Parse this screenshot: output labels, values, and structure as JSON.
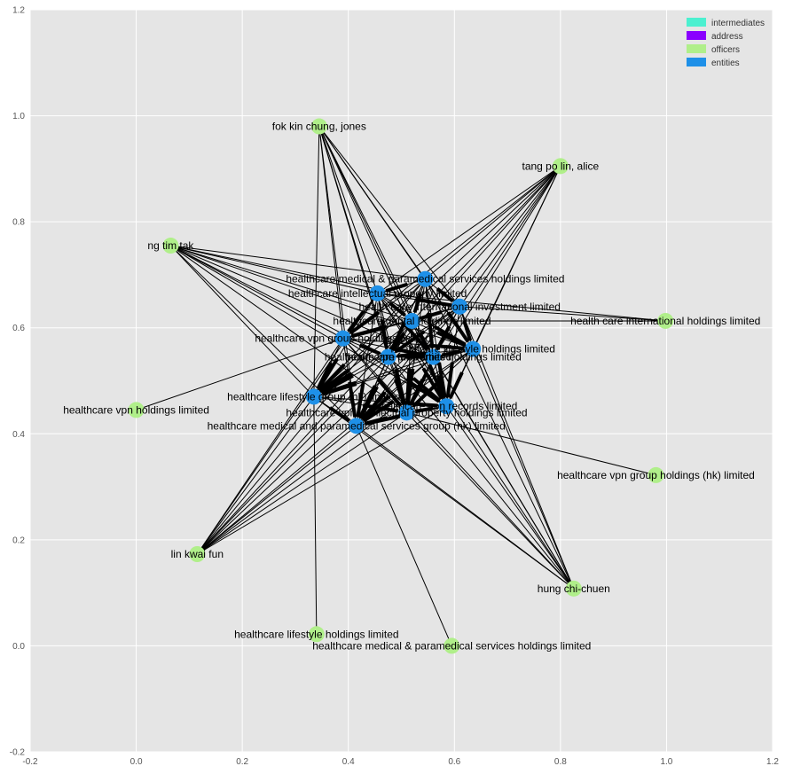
{
  "chart_data": {
    "type": "network",
    "xlim": [
      -0.2,
      1.2
    ],
    "ylim": [
      -0.2,
      1.2
    ],
    "x_ticks": [
      "-0.2",
      "0.0",
      "0.2",
      "0.4",
      "0.6",
      "0.8",
      "1.0",
      "1.2"
    ],
    "y_ticks": [
      "-0.2",
      "0.0",
      "0.2",
      "0.4",
      "0.6",
      "0.8",
      "1.0",
      "1.2"
    ],
    "grid": true,
    "legend_position": "top-right",
    "legend": [
      {
        "label": "intermediates",
        "color": "#4cf0d0"
      },
      {
        "label": "address",
        "color": "#8a00ff"
      },
      {
        "label": "officers",
        "color": "#b0ef8a"
      },
      {
        "label": "entities",
        "color": "#1e90e8"
      }
    ],
    "nodes": [
      {
        "id": "o_fok",
        "label": "fok kin chung, jones",
        "type": "officers",
        "x": 0.345,
        "y": 0.98
      },
      {
        "id": "o_tang",
        "label": "tang po lin, alice",
        "type": "officers",
        "x": 0.8,
        "y": 0.905
      },
      {
        "id": "o_ng",
        "label": "ng tim tak",
        "type": "officers",
        "x": 0.065,
        "y": 0.755
      },
      {
        "id": "o_hci",
        "label": "health care international holdings limited",
        "type": "officers",
        "x": 0.998,
        "y": 0.613
      },
      {
        "id": "o_vpnh",
        "label": "healthcare vpn holdings limited",
        "type": "officers",
        "x": 0.0,
        "y": 0.445
      },
      {
        "id": "o_vpngh",
        "label": "healthcare vpn group holdings (hk) limited",
        "type": "officers",
        "x": 0.98,
        "y": 0.322
      },
      {
        "id": "o_lin",
        "label": "lin kwai fun",
        "type": "officers",
        "x": 0.115,
        "y": 0.173
      },
      {
        "id": "o_hung",
        "label": "hung chi-chuen",
        "type": "officers",
        "x": 0.825,
        "y": 0.108
      },
      {
        "id": "o_lsh",
        "label": "healthcare lifestyle holdings limited",
        "type": "officers",
        "x": 0.34,
        "y": 0.022
      },
      {
        "id": "o_mpsh",
        "label": "healthcare medical & paramedical services holdings limited",
        "type": "officers",
        "x": 0.595,
        "y": 0.0
      },
      {
        "id": "e1",
        "label": "healthcare medical & paramedical services holdings limited",
        "type": "entities",
        "x": 0.545,
        "y": 0.692
      },
      {
        "id": "e2",
        "label": "healthcare intellectual property limited",
        "type": "entities",
        "x": 0.455,
        "y": 0.665
      },
      {
        "id": "e3",
        "label": "health care international investment limited",
        "type": "entities",
        "x": 0.61,
        "y": 0.64
      },
      {
        "id": "e4",
        "label": "healthcare dental holdings limited",
        "type": "entities",
        "x": 0.52,
        "y": 0.613
      },
      {
        "id": "e5",
        "label": "healthcare vpn group holdings limited",
        "type": "entities",
        "x": 0.39,
        "y": 0.58
      },
      {
        "id": "e6",
        "label": "healthcare lifestyle holdings limited",
        "type": "entities",
        "x": 0.635,
        "y": 0.56
      },
      {
        "id": "e7",
        "label": "healthcare vpn fund limited",
        "type": "entities",
        "x": 0.475,
        "y": 0.545
      },
      {
        "id": "e8",
        "label": "healthcare properties holdings limited",
        "type": "entities",
        "x": 0.56,
        "y": 0.545
      },
      {
        "id": "e9",
        "label": "healthcare lifestyle group (hk) limited",
        "type": "entities",
        "x": 0.335,
        "y": 0.47
      },
      {
        "id": "e10",
        "label": "healthcare vpn records limited",
        "type": "entities",
        "x": 0.585,
        "y": 0.452
      },
      {
        "id": "e11",
        "label": "healthcare vpn intellectual property holdings limited",
        "type": "entities",
        "x": 0.51,
        "y": 0.44
      },
      {
        "id": "e12",
        "label": "healthcare medical and paramedical services group (hk) limited",
        "type": "entities",
        "x": 0.415,
        "y": 0.415
      }
    ],
    "edges": [
      [
        "o_fok",
        "e1"
      ],
      [
        "o_fok",
        "e2"
      ],
      [
        "o_fok",
        "e3"
      ],
      [
        "o_fok",
        "e4"
      ],
      [
        "o_fok",
        "e5"
      ],
      [
        "o_fok",
        "e6"
      ],
      [
        "o_fok",
        "e7"
      ],
      [
        "o_fok",
        "e8"
      ],
      [
        "o_fok",
        "e9"
      ],
      [
        "o_fok",
        "e10"
      ],
      [
        "o_fok",
        "e11"
      ],
      [
        "o_fok",
        "e12"
      ],
      [
        "o_tang",
        "e1"
      ],
      [
        "o_tang",
        "e2"
      ],
      [
        "o_tang",
        "e3"
      ],
      [
        "o_tang",
        "e4"
      ],
      [
        "o_tang",
        "e5"
      ],
      [
        "o_tang",
        "e6"
      ],
      [
        "o_tang",
        "e7"
      ],
      [
        "o_tang",
        "e8"
      ],
      [
        "o_tang",
        "e9"
      ],
      [
        "o_tang",
        "e10"
      ],
      [
        "o_tang",
        "e11"
      ],
      [
        "o_tang",
        "e12"
      ],
      [
        "o_ng",
        "e1"
      ],
      [
        "o_ng",
        "e2"
      ],
      [
        "o_ng",
        "e3"
      ],
      [
        "o_ng",
        "e4"
      ],
      [
        "o_ng",
        "e5"
      ],
      [
        "o_ng",
        "e6"
      ],
      [
        "o_ng",
        "e7"
      ],
      [
        "o_ng",
        "e8"
      ],
      [
        "o_ng",
        "e9"
      ],
      [
        "o_ng",
        "e10"
      ],
      [
        "o_ng",
        "e11"
      ],
      [
        "o_ng",
        "e12"
      ],
      [
        "o_lin",
        "e1"
      ],
      [
        "o_lin",
        "e2"
      ],
      [
        "o_lin",
        "e3"
      ],
      [
        "o_lin",
        "e4"
      ],
      [
        "o_lin",
        "e5"
      ],
      [
        "o_lin",
        "e6"
      ],
      [
        "o_lin",
        "e7"
      ],
      [
        "o_lin",
        "e8"
      ],
      [
        "o_lin",
        "e9"
      ],
      [
        "o_lin",
        "e10"
      ],
      [
        "o_lin",
        "e11"
      ],
      [
        "o_lin",
        "e12"
      ],
      [
        "o_hung",
        "e1"
      ],
      [
        "o_hung",
        "e2"
      ],
      [
        "o_hung",
        "e3"
      ],
      [
        "o_hung",
        "e4"
      ],
      [
        "o_hung",
        "e5"
      ],
      [
        "o_hung",
        "e6"
      ],
      [
        "o_hung",
        "e7"
      ],
      [
        "o_hung",
        "e8"
      ],
      [
        "o_hung",
        "e9"
      ],
      [
        "o_hung",
        "e10"
      ],
      [
        "o_hung",
        "e11"
      ],
      [
        "o_hung",
        "e12"
      ],
      [
        "o_hci",
        "e3"
      ],
      [
        "o_hci",
        "e2"
      ],
      [
        "o_hci",
        "e4"
      ],
      [
        "o_vpnh",
        "e5"
      ],
      [
        "o_vpngh",
        "e11"
      ],
      [
        "o_lsh",
        "e9"
      ],
      [
        "o_mpsh",
        "e12"
      ],
      [
        "e1",
        "e2"
      ],
      [
        "e1",
        "e3"
      ],
      [
        "e1",
        "e4"
      ],
      [
        "e1",
        "e5"
      ],
      [
        "e1",
        "e6"
      ],
      [
        "e1",
        "e7"
      ],
      [
        "e1",
        "e8"
      ],
      [
        "e1",
        "e9"
      ],
      [
        "e1",
        "e10"
      ],
      [
        "e1",
        "e11"
      ],
      [
        "e1",
        "e12"
      ],
      [
        "e2",
        "e3"
      ],
      [
        "e2",
        "e4"
      ],
      [
        "e2",
        "e5"
      ],
      [
        "e2",
        "e6"
      ],
      [
        "e2",
        "e7"
      ],
      [
        "e2",
        "e8"
      ],
      [
        "e2",
        "e9"
      ],
      [
        "e2",
        "e10"
      ],
      [
        "e2",
        "e11"
      ],
      [
        "e2",
        "e12"
      ],
      [
        "e3",
        "e4"
      ],
      [
        "e3",
        "e5"
      ],
      [
        "e3",
        "e6"
      ],
      [
        "e3",
        "e7"
      ],
      [
        "e3",
        "e8"
      ],
      [
        "e3",
        "e9"
      ],
      [
        "e3",
        "e10"
      ],
      [
        "e3",
        "e11"
      ],
      [
        "e3",
        "e12"
      ],
      [
        "e4",
        "e5"
      ],
      [
        "e4",
        "e6"
      ],
      [
        "e4",
        "e7"
      ],
      [
        "e4",
        "e8"
      ],
      [
        "e4",
        "e9"
      ],
      [
        "e4",
        "e10"
      ],
      [
        "e4",
        "e11"
      ],
      [
        "e4",
        "e12"
      ],
      [
        "e5",
        "e6"
      ],
      [
        "e5",
        "e7"
      ],
      [
        "e5",
        "e8"
      ],
      [
        "e5",
        "e9"
      ],
      [
        "e5",
        "e10"
      ],
      [
        "e5",
        "e11"
      ],
      [
        "e5",
        "e12"
      ],
      [
        "e6",
        "e7"
      ],
      [
        "e6",
        "e8"
      ],
      [
        "e6",
        "e9"
      ],
      [
        "e6",
        "e10"
      ],
      [
        "e6",
        "e11"
      ],
      [
        "e6",
        "e12"
      ],
      [
        "e7",
        "e8"
      ],
      [
        "e7",
        "e9"
      ],
      [
        "e7",
        "e10"
      ],
      [
        "e7",
        "e11"
      ],
      [
        "e7",
        "e12"
      ],
      [
        "e8",
        "e9"
      ],
      [
        "e8",
        "e10"
      ],
      [
        "e8",
        "e11"
      ],
      [
        "e8",
        "e12"
      ],
      [
        "e9",
        "e10"
      ],
      [
        "e9",
        "e11"
      ],
      [
        "e9",
        "e12"
      ],
      [
        "e10",
        "e11"
      ],
      [
        "e10",
        "e12"
      ],
      [
        "e11",
        "e12"
      ]
    ]
  }
}
